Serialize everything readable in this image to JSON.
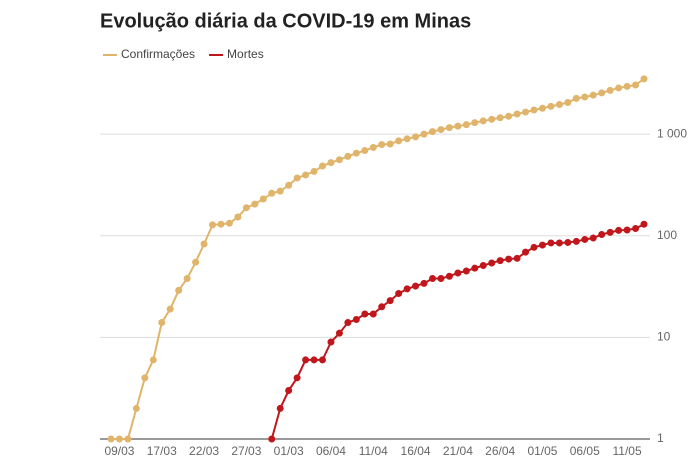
{
  "chart_data": {
    "type": "line",
    "title": "Evolução diária da COVID-19 em Minas",
    "categories": [
      null,
      "09/03",
      null,
      null,
      null,
      null,
      "17/03",
      null,
      null,
      null,
      null,
      "22/03",
      null,
      null,
      null,
      null,
      "27/03",
      null,
      null,
      null,
      null,
      "01/03",
      null,
      null,
      null,
      null,
      "06/04",
      null,
      null,
      null,
      null,
      "11/04",
      null,
      null,
      null,
      null,
      "16/04",
      null,
      null,
      null,
      null,
      "21/04",
      null,
      null,
      null,
      null,
      "26/04",
      null,
      null,
      null,
      null,
      "01/05",
      null,
      null,
      null,
      null,
      "06/05",
      null,
      null,
      null,
      null,
      "11/05",
      null,
      null
    ],
    "series": [
      {
        "name": "Confirmações",
        "color": "#e0b46a",
        "values": [
          1,
          1,
          1,
          2,
          4,
          6,
          14,
          19,
          29,
          38,
          55,
          83,
          128,
          130,
          133,
          153,
          189,
          205,
          230,
          262,
          275,
          314,
          370,
          397,
          430,
          486,
          525,
          560,
          605,
          650,
          690,
          740,
          790,
          800,
          860,
          900,
          940,
          1000,
          1060,
          1110,
          1160,
          1200,
          1240,
          1300,
          1350,
          1400,
          1450,
          1500,
          1580,
          1650,
          1730,
          1800,
          1880,
          1960,
          2050,
          2250,
          2320,
          2420,
          2550,
          2700,
          2850,
          2950,
          3050,
          3500
        ]
      },
      {
        "name": "Mortes",
        "color": "#c0171c",
        "values": [
          null,
          null,
          null,
          null,
          null,
          null,
          null,
          null,
          null,
          null,
          null,
          null,
          null,
          null,
          null,
          null,
          null,
          null,
          null,
          1,
          2,
          3,
          4,
          6,
          6,
          6,
          9,
          11,
          14,
          15,
          17,
          17,
          20,
          23,
          27,
          30,
          32,
          34,
          38,
          38,
          40,
          43,
          45,
          48,
          51,
          54,
          57,
          59,
          60,
          69,
          77,
          81,
          85,
          85,
          86,
          88,
          92,
          95,
          103,
          108,
          113,
          114,
          118,
          130
        ]
      }
    ],
    "ylim": [
      1,
      4000
    ],
    "log_scale": true,
    "grid": true,
    "legend": "top-left",
    "yticks": [
      1,
      10,
      100,
      {
        "value": 1000,
        "label": "1 000"
      }
    ]
  }
}
